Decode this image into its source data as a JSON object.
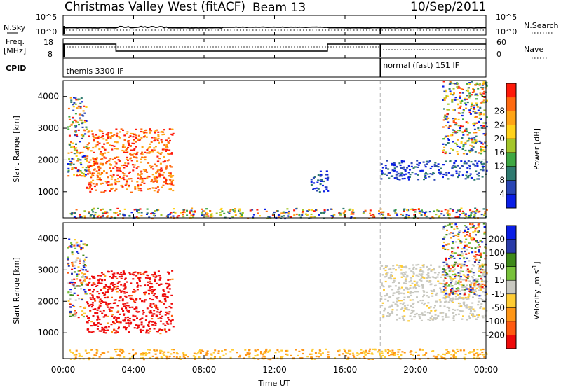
{
  "header": {
    "title": "Christmas Valley West (fitACF)",
    "beam": "Beam 13",
    "date": "10/Sep/2011"
  },
  "top_panels": {
    "nsky": {
      "label": "N.Sky",
      "ticks": [
        "10^5",
        "10^0"
      ]
    },
    "nsearch": {
      "label": "N.Search",
      "ticks": [
        "10^5",
        "10^0"
      ]
    },
    "freq": {
      "label_line1": "Freq.",
      "label_line2": "[MHz]",
      "ticks": [
        "18",
        "8"
      ]
    },
    "nave": {
      "label": "Nave",
      "ticks": [
        "60",
        "0"
      ]
    },
    "cpid": {
      "label": "CPID",
      "segments": [
        {
          "start_hour": 0,
          "end_hour": 18,
          "text": "themis 3300 IF"
        },
        {
          "start_hour": 18,
          "end_hour": 24,
          "text": "normal (fast) 151 IF"
        }
      ]
    }
  },
  "chart_data": [
    {
      "type": "heatmap",
      "name": "power",
      "ylabel": "Slant Range [km]",
      "y_ticks": [
        "1000",
        "2000",
        "3000",
        "4000"
      ],
      "y_range_km": [
        180,
        4500
      ],
      "x_range_hours": [
        0,
        24
      ],
      "colorbar": {
        "label": "Power [dB]",
        "tick_labels": [
          "4",
          "8",
          "12",
          "16",
          "20",
          "24",
          "28"
        ],
        "colors": [
          "#0a1ee6",
          "#2a46b4",
          "#2f7a70",
          "#3fa843",
          "#a4c62b",
          "#ffd21a",
          "#ffa416",
          "#ff6a10",
          "#ff1a0a"
        ]
      },
      "regions": [
        {
          "t0": 0.2,
          "t1": 1.3,
          "r0": 1500,
          "r1": 4000,
          "level": "mixed low-high"
        },
        {
          "t0": 1.3,
          "t1": 6.2,
          "r0": 1000,
          "r1": 3000,
          "level": "high"
        },
        {
          "t0": 0.3,
          "t1": 24,
          "r0": 180,
          "r1": 500,
          "level": "ground scatter low-mixed"
        },
        {
          "t0": 14.0,
          "t1": 15.0,
          "r0": 1000,
          "r1": 1700,
          "level": "low"
        },
        {
          "t0": 18.0,
          "t1": 24,
          "r0": 1400,
          "r1": 2000,
          "level": "low"
        },
        {
          "t0": 21.5,
          "t1": 24,
          "r0": 2200,
          "r1": 4500,
          "level": "mixed"
        }
      ]
    },
    {
      "type": "heatmap",
      "name": "velocity",
      "ylabel": "Slant Range [km]",
      "y_ticks": [
        "1000",
        "2000",
        "3000",
        "4000"
      ],
      "y_range_km": [
        180,
        4500
      ],
      "x_range_hours": [
        0,
        24
      ],
      "colorbar": {
        "label": "Velocity [m s",
        "label_sup": "-1",
        "label_end": "]",
        "tick_labels": [
          "-200",
          "-100",
          "-50",
          "-15",
          "15",
          "50",
          "100",
          "200"
        ],
        "colors": [
          "#ee0a0a",
          "#ff5a10",
          "#ff9616",
          "#ffcc33",
          "#c8c8c0",
          "#78c13b",
          "#3f8a1a",
          "#2a3ba8",
          "#0a1ee6"
        ]
      },
      "regions": [
        {
          "t0": 0.2,
          "t1": 1.3,
          "r0": 1500,
          "r1": 4000,
          "level": "mixed"
        },
        {
          "t0": 1.3,
          "t1": 6.2,
          "r0": 1000,
          "r1": 3000,
          "level": "negative high"
        },
        {
          "t0": 0.3,
          "t1": 24,
          "r0": 180,
          "r1": 500,
          "level": "negative low"
        },
        {
          "t0": 18.0,
          "t1": 24,
          "r0": 1400,
          "r1": 3200,
          "level": "near zero"
        },
        {
          "t0": 21.5,
          "t1": 24,
          "r0": 2200,
          "r1": 4500,
          "level": "mixed"
        }
      ]
    }
  ],
  "x_axis": {
    "label": "Time UT",
    "tick_labels": [
      "00:00",
      "04:00",
      "08:00",
      "12:00",
      "16:00",
      "20:00",
      "00:00"
    ]
  }
}
